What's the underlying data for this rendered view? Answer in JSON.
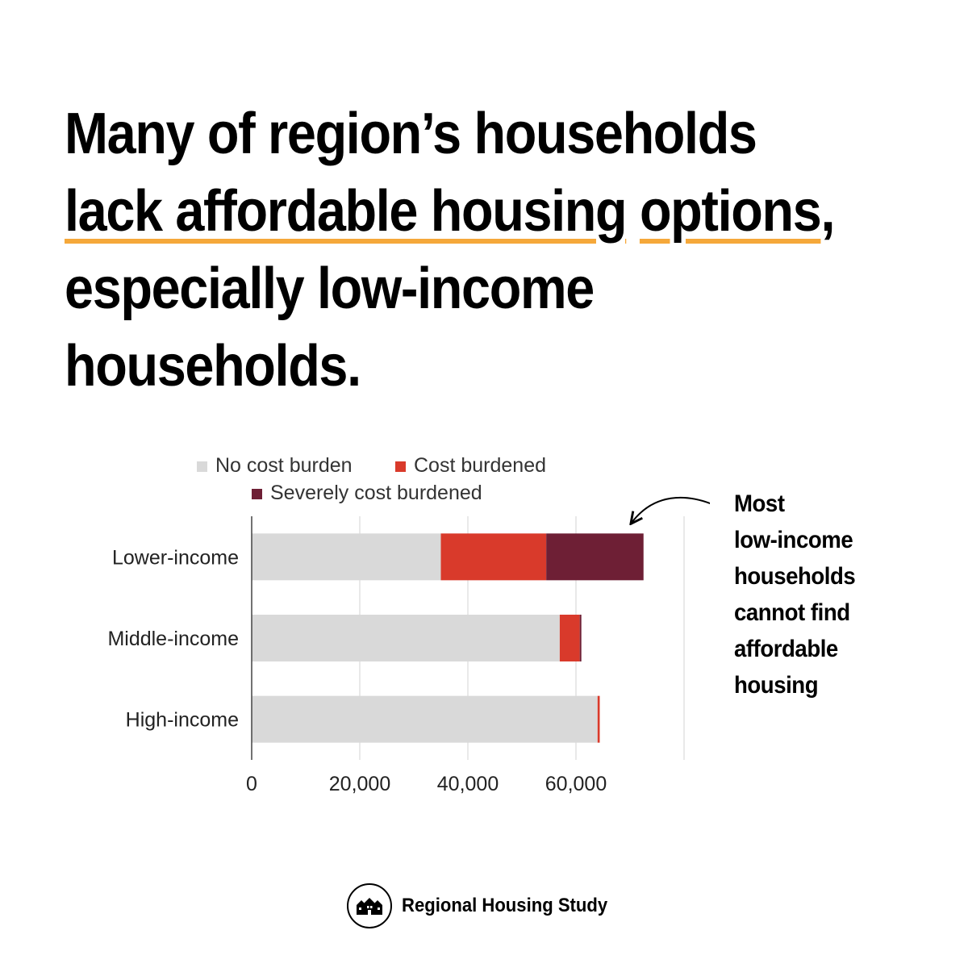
{
  "headline": {
    "part1": "Many of region’s households ",
    "highlight1": "lack affordable housing",
    "part2": " ",
    "highlight2": "options",
    "part3": ", especially low-income households."
  },
  "annotation": {
    "lines": [
      "Most",
      "low-income",
      "households",
      "cannot find",
      "affordable",
      "housing"
    ]
  },
  "footer": {
    "org_name": "Regional Housing Study",
    "logo_icon": "houses-icon"
  },
  "colors": {
    "no_cost_burden": "#d9d9d9",
    "cost_burdened": "#d93a2b",
    "severely_cost_burdened": "#6e1f35",
    "highlight": "#f5a83a",
    "gridline": "#e2e2e2"
  },
  "chart_data": {
    "type": "bar",
    "orientation": "horizontal",
    "stacked": true,
    "categories": [
      "Lower-income",
      "Middle-income",
      "High-income"
    ],
    "series": [
      {
        "name": "No cost burden",
        "values": [
          35000,
          57000,
          64000
        ]
      },
      {
        "name": "Cost burdened",
        "values": [
          19500,
          3700,
          400
        ]
      },
      {
        "name": "Severely cost burdened",
        "values": [
          18000,
          300,
          0
        ]
      }
    ],
    "x_ticks": [
      "0",
      "20,000",
      "40,000",
      "60,000"
    ],
    "x_tick_values": [
      0,
      20000,
      40000,
      60000
    ],
    "xlim": [
      0,
      80000
    ],
    "title": "",
    "xlabel": "",
    "ylabel": "",
    "grid": true,
    "legend_position": "top"
  }
}
